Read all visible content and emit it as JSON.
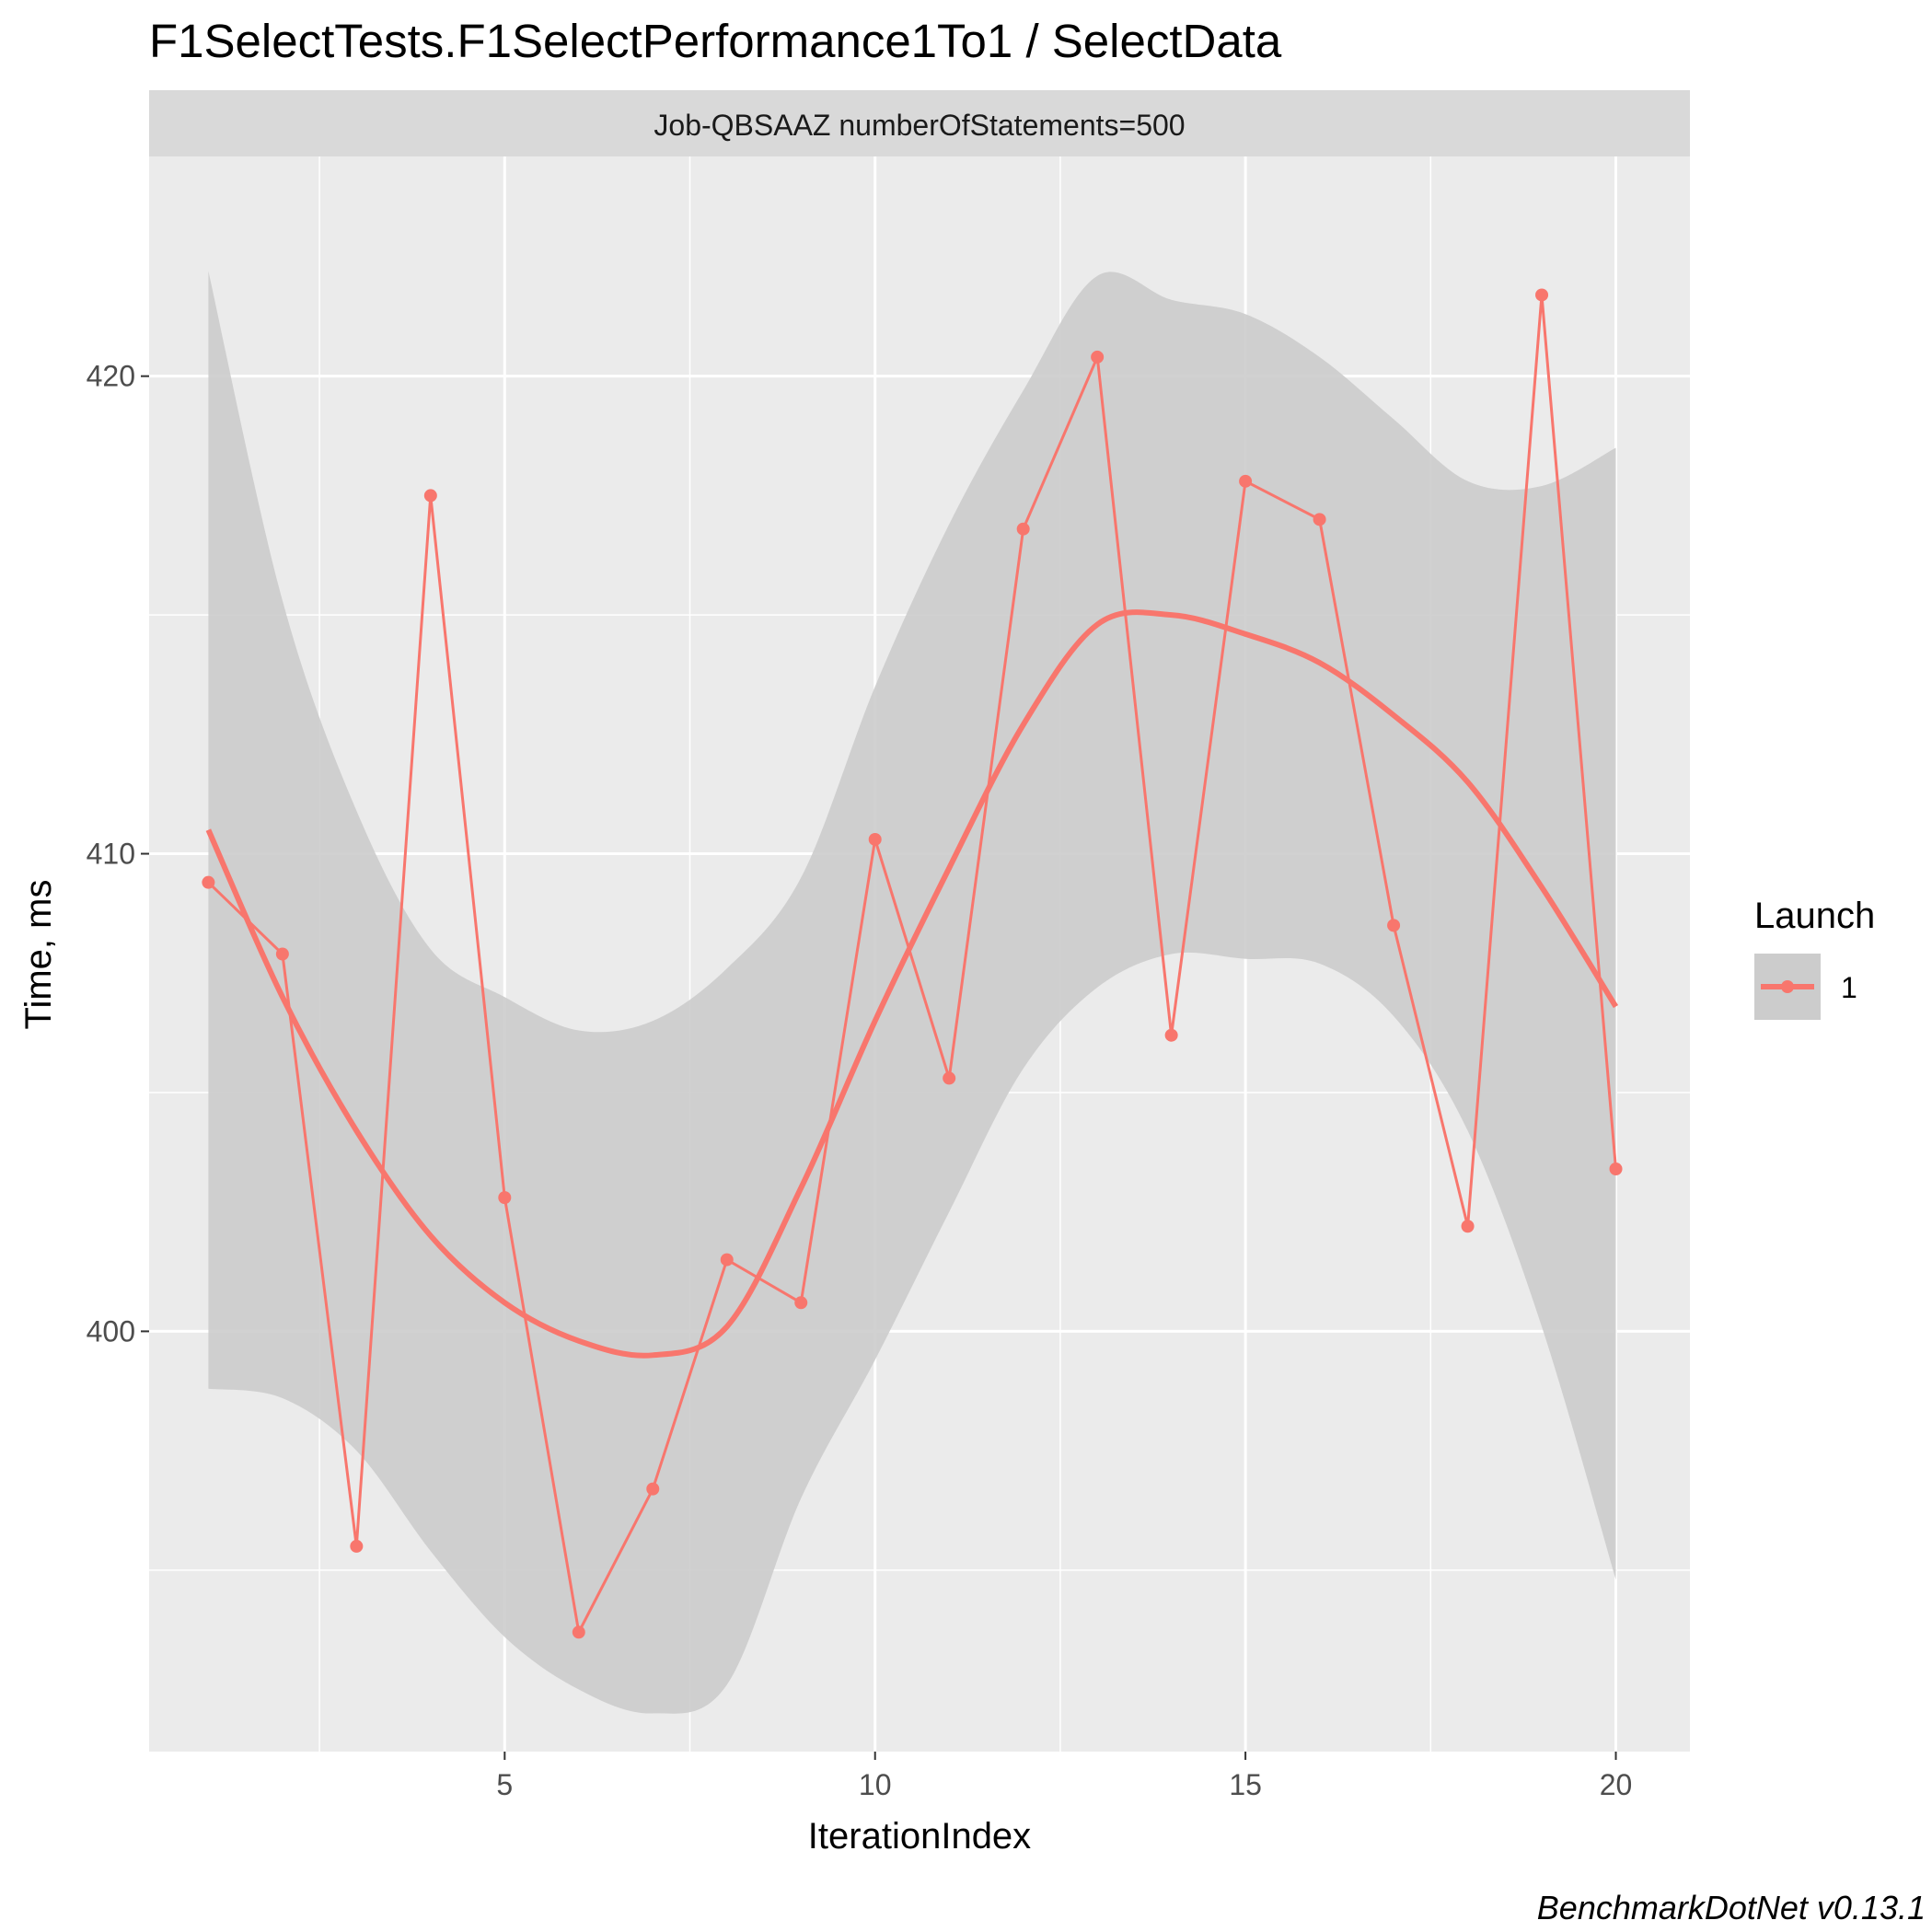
{
  "chart_data": {
    "type": "line",
    "title": "F1SelectTests.F1SelectPerformance1To1 / SelectData",
    "facet_label": "Job-QBSAAZ numberOfStatements=500",
    "xlabel": "IterationIndex",
    "ylabel": "Time, ms",
    "xlim": [
      0.2,
      21.0
    ],
    "ylim": [
      391.2,
      424.6
    ],
    "x_ticks": [
      5,
      10,
      15,
      20
    ],
    "y_ticks": [
      400,
      410,
      420
    ],
    "x_tick_labels": [
      "5",
      "10",
      "15",
      "20"
    ],
    "y_tick_labels": [
      "400",
      "410",
      "420"
    ],
    "grid": true,
    "legend": {
      "title": "Launch",
      "position": "right",
      "entries": [
        "1"
      ]
    },
    "series": [
      {
        "name": "1",
        "color": "#F8766D",
        "x": [
          1,
          2,
          3,
          4,
          5,
          6,
          7,
          8,
          9,
          10,
          11,
          12,
          13,
          14,
          15,
          16,
          17,
          18,
          19,
          20
        ],
        "values": [
          409.4,
          407.9,
          395.5,
          417.5,
          402.8,
          393.7,
          396.7,
          401.5,
          400.6,
          410.3,
          405.3,
          416.8,
          420.4,
          406.2,
          417.8,
          417.0,
          408.5,
          402.2,
          421.7,
          403.4
        ]
      }
    ],
    "smooth": {
      "x": [
        1,
        2,
        3,
        4,
        5,
        6,
        7,
        8,
        9,
        10,
        11,
        12,
        13,
        14,
        15,
        16,
        17,
        18,
        19,
        20
      ],
      "values": [
        410.5,
        407.0,
        404.2,
        402.0,
        400.6,
        399.8,
        399.5,
        400.1,
        403.0,
        406.5,
        409.7,
        412.7,
        414.8,
        415.0,
        414.6,
        414.0,
        412.9,
        411.5,
        409.3,
        406.8
      ],
      "ci_lower": [
        398.8,
        398.6,
        397.5,
        395.4,
        393.6,
        392.5,
        392.0,
        392.6,
        396.5,
        399.4,
        402.5,
        405.5,
        407.2,
        407.9,
        407.8,
        407.7,
        406.6,
        404.2,
        400.1,
        394.8
      ],
      "ci_upper": [
        422.2,
        415.3,
        410.9,
        408.0,
        407.0,
        406.3,
        406.5,
        407.6,
        409.5,
        413.5,
        416.9,
        419.7,
        422.1,
        421.6,
        421.3,
        420.4,
        419.1,
        417.8,
        417.7,
        418.5
      ],
      "ci_fill": "#cccccc"
    },
    "panel_background": "#EBEBEB",
    "strip_background": "#D9D9D9",
    "caption": "BenchmarkDotNet v0.13.1"
  }
}
